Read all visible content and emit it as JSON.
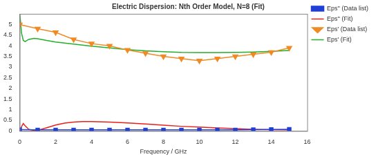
{
  "chart_data": {
    "type": "line",
    "title": "Electric Dispersion: Nth Order Model, N=8 (Fit)",
    "x_label": "Frequency / GHz",
    "xlim": [
      0,
      16
    ],
    "xticks": [
      0,
      2,
      4,
      6,
      8,
      10,
      12,
      14,
      16
    ],
    "ylim": [
      0,
      5.5
    ],
    "yticks": [
      0,
      0.5,
      1,
      1.5,
      2,
      2.5,
      3,
      3.5,
      4,
      4.5,
      5
    ],
    "grid": false,
    "legend": "right",
    "series": [
      {
        "name": "Eps'' (Data list)",
        "color": "#1f3fd6",
        "marker": "square",
        "line_style": "solid",
        "x": [
          0,
          1,
          2,
          3,
          4,
          5,
          6,
          7,
          8,
          9,
          10,
          11,
          12,
          13,
          14,
          15
        ],
        "values": [
          0.06,
          0.05,
          0.05,
          0.05,
          0.05,
          0.05,
          0.05,
          0.05,
          0.05,
          0.05,
          0.05,
          0.05,
          0.05,
          0.06,
          0.07,
          0.08
        ]
      },
      {
        "name": "Eps'' (Fit)",
        "color": "#e8201a",
        "marker": "none",
        "line_style": "solid",
        "x": [
          0,
          0.1,
          0.2,
          0.3,
          0.5,
          0.8,
          1,
          1.5,
          2,
          2.5,
          3,
          3.5,
          4,
          5,
          6,
          7,
          8,
          9,
          10,
          11,
          12,
          13,
          14,
          15
        ],
        "values": [
          0,
          0.2,
          0.35,
          0.25,
          0.08,
          0.02,
          0.03,
          0.15,
          0.28,
          0.37,
          0.42,
          0.44,
          0.44,
          0.42,
          0.38,
          0.33,
          0.27,
          0.22,
          0.18,
          0.14,
          0.11,
          0.08,
          0.06,
          0.05
        ]
      },
      {
        "name": "Eps' (Data list)",
        "color": "#f08a24",
        "marker": "triangle_down",
        "line_style": "solid",
        "x": [
          0,
          1,
          2,
          3,
          4,
          5,
          6,
          7,
          8,
          9,
          10,
          11,
          12,
          13,
          14,
          15
        ],
        "values": [
          5.0,
          4.8,
          4.63,
          4.3,
          4.1,
          4.0,
          3.8,
          3.65,
          3.5,
          3.4,
          3.3,
          3.4,
          3.5,
          3.6,
          3.7,
          3.9
        ]
      },
      {
        "name": "Eps' (Fit)",
        "color": "#22b02a",
        "marker": "none",
        "line_style": "solid",
        "x": [
          0,
          0.05,
          0.1,
          0.2,
          0.3,
          0.5,
          0.8,
          1,
          1.5,
          2,
          3,
          4,
          5,
          6,
          7,
          8,
          9,
          10,
          11,
          12,
          13,
          14,
          15
        ],
        "values": [
          5.5,
          5.1,
          4.6,
          4.25,
          4.2,
          4.3,
          4.35,
          4.33,
          4.25,
          4.18,
          4.08,
          3.98,
          3.9,
          3.82,
          3.76,
          3.72,
          3.69,
          3.68,
          3.68,
          3.69,
          3.71,
          3.74,
          3.78
        ]
      }
    ]
  }
}
